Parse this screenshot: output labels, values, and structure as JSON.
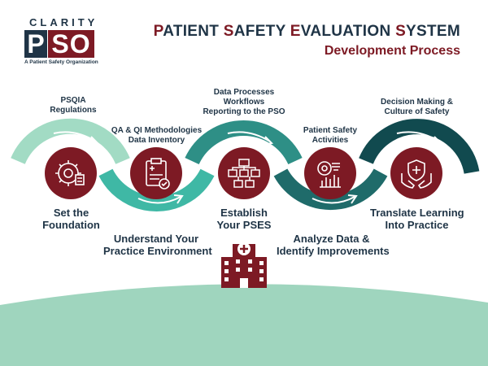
{
  "logo": {
    "word": "CLARITY",
    "mark_p": "P",
    "mark_so": "SO",
    "tagline": "A Patient Safety Organization"
  },
  "header": {
    "title_parts": [
      {
        "cap": "P",
        "rest": "ATIENT "
      },
      {
        "cap": "S",
        "rest": "AFETY "
      },
      {
        "cap": "E",
        "rest": "VALUATION "
      },
      {
        "cap": "S",
        "rest": "YSTEM"
      }
    ],
    "subtitle": "Development Process"
  },
  "steps": [
    {
      "top_label": [
        "PSQIA",
        "Regulations"
      ],
      "bottom_label": [
        "Set the",
        "Foundation"
      ],
      "icon": "gear-checklist-icon"
    },
    {
      "top_label": [
        "QA & QI Methodologies",
        "Data Inventory"
      ],
      "bottom_label": [
        "Understand Your",
        "Practice Environment"
      ],
      "icon": "clipboard-icon"
    },
    {
      "top_label": [
        "Data Processes",
        "Workflows",
        "Reporting to the PSO"
      ],
      "bottom_label": [
        "Establish",
        "Your PSES"
      ],
      "icon": "flowchart-icon"
    },
    {
      "top_label": [
        "Patient Safety",
        "Activities"
      ],
      "bottom_label": [
        "Analyze Data &",
        "Identify Improvements"
      ],
      "icon": "analytics-icon"
    },
    {
      "top_label": [
        "Decision Making &",
        "Culture of Safety"
      ],
      "bottom_label": [
        "Translate Learning",
        "Into Practice"
      ],
      "icon": "hands-shield-icon"
    }
  ],
  "colors": {
    "navy": "#1f3446",
    "maroon": "#7d1a24",
    "mint": "#a2dbc4",
    "teal": "#3fb8a5",
    "teal_mid": "#2e8f86",
    "teal_dark": "#1f6b6a",
    "teal_deep": "#114a4f",
    "ground": "#9fd5be"
  },
  "footer_icon": "hospital-building-icon"
}
